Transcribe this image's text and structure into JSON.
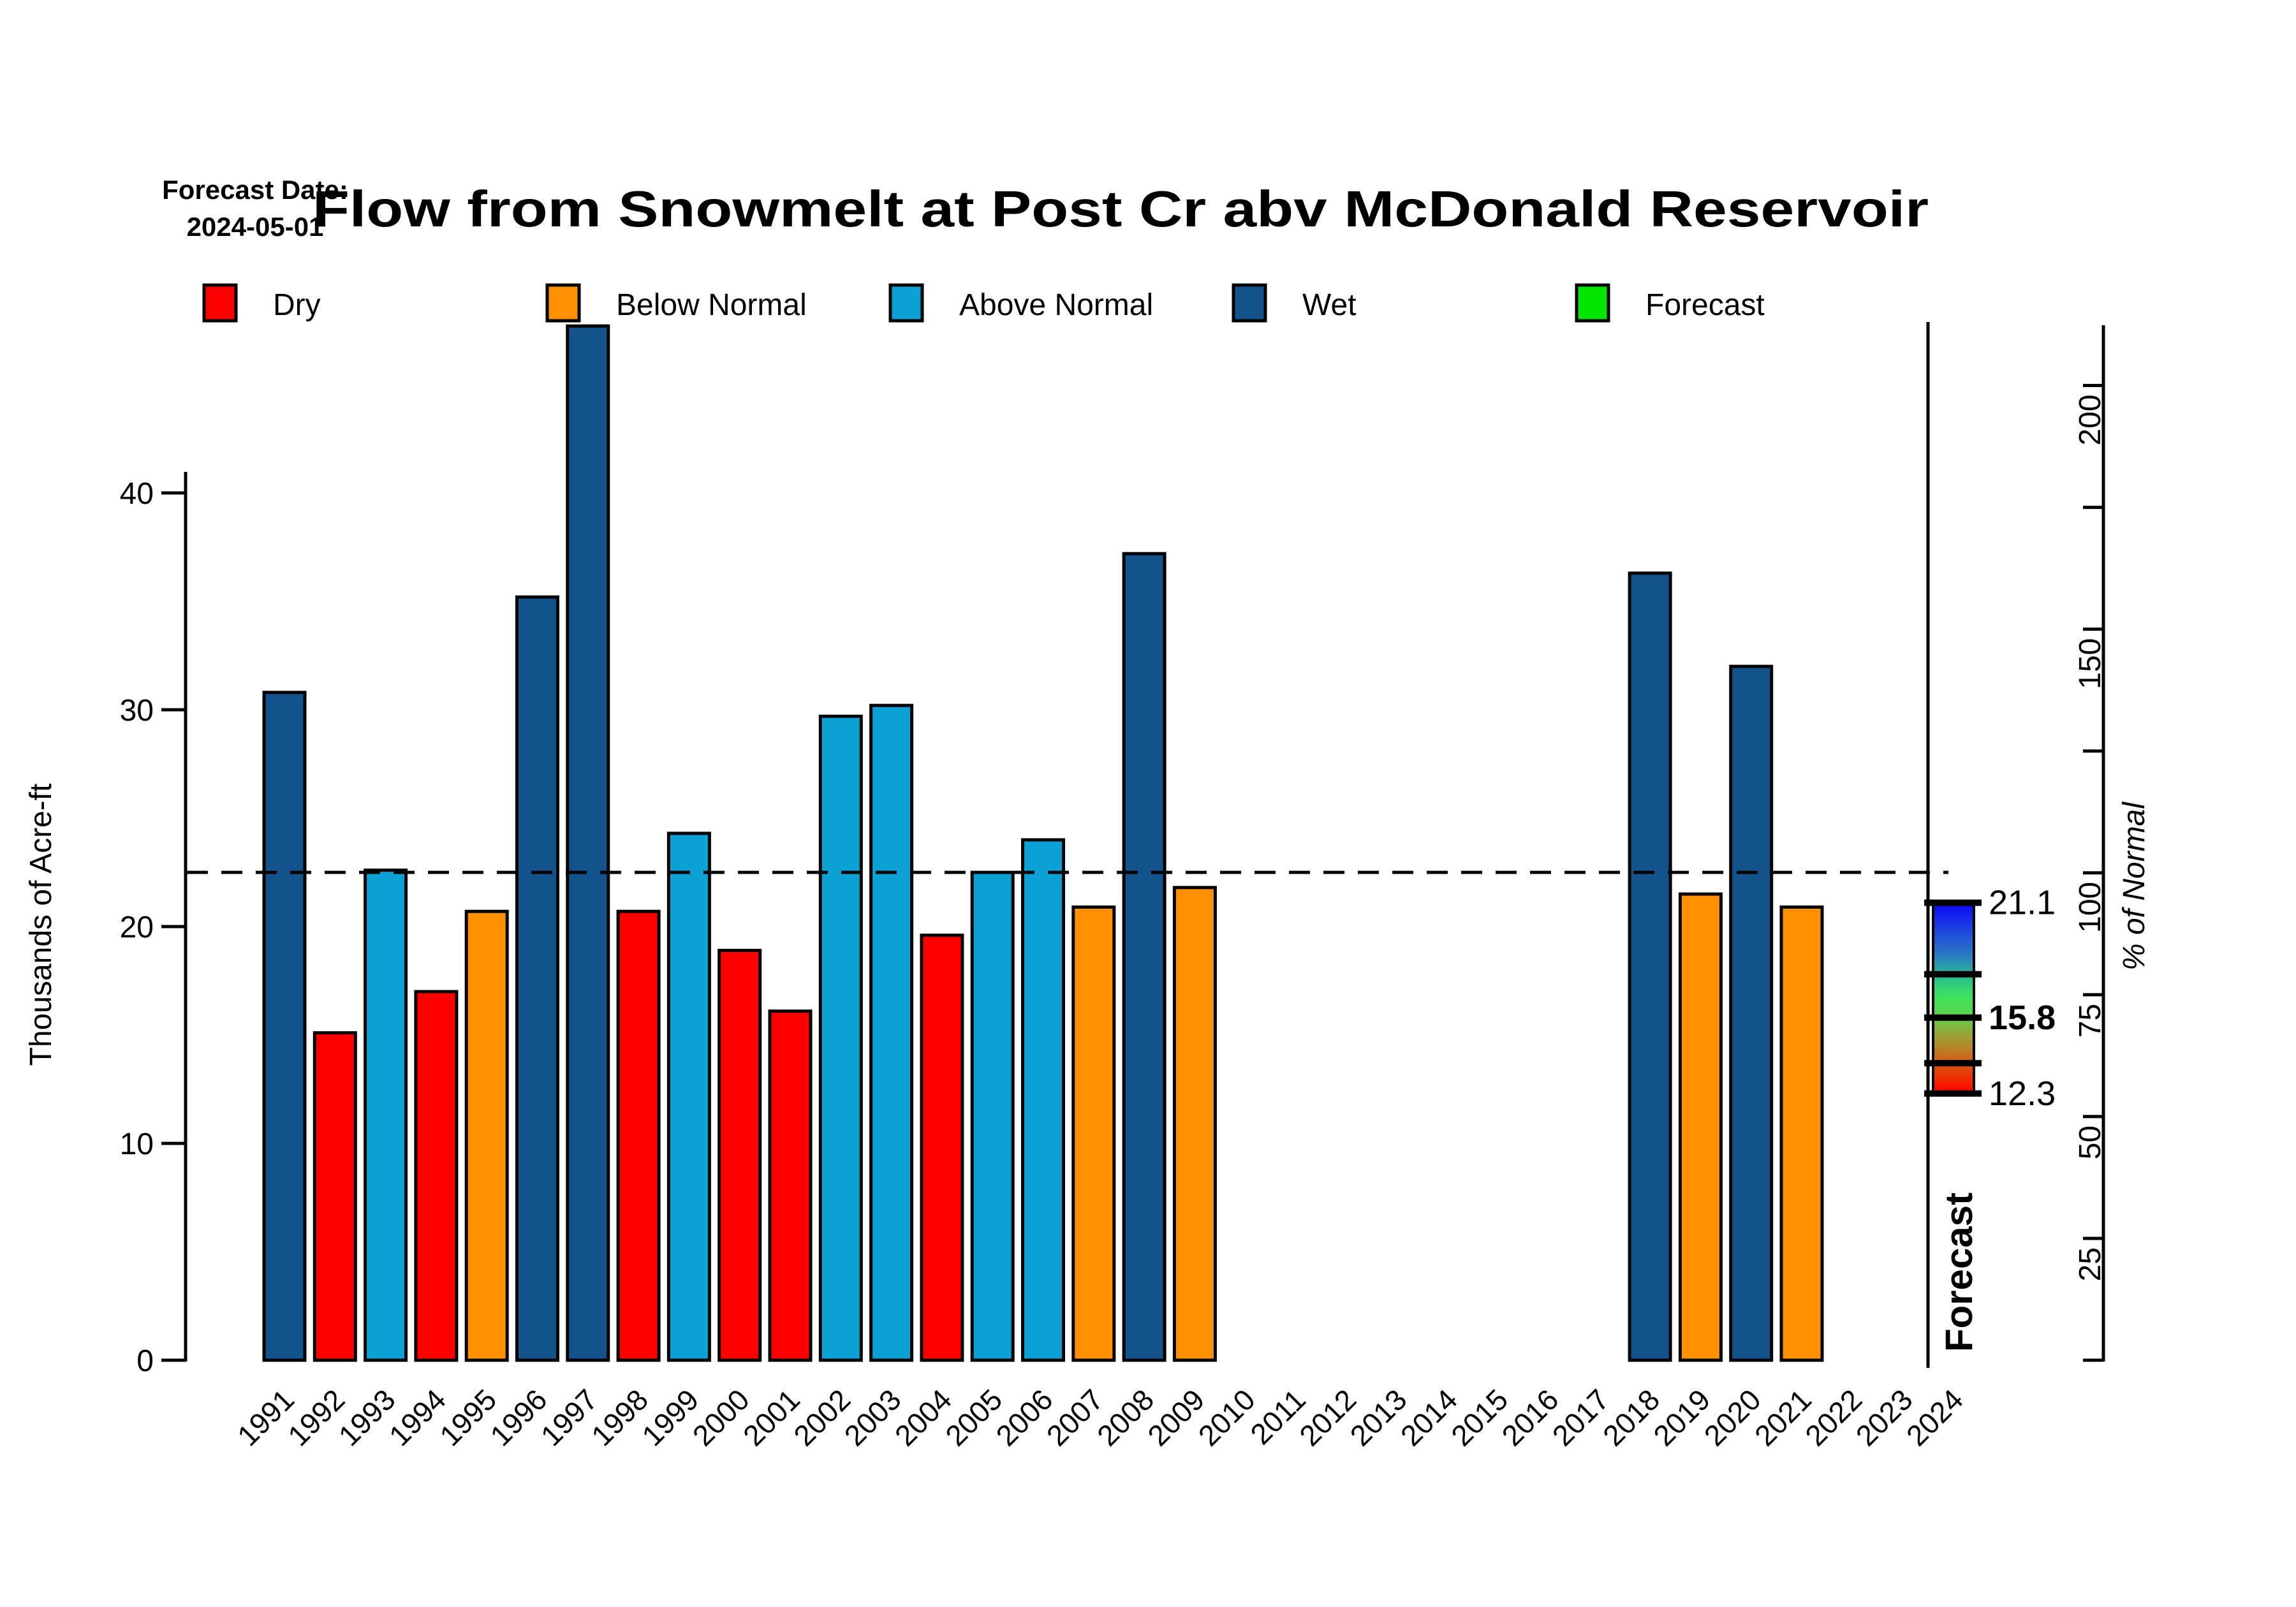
{
  "header": {
    "forecast_date_label": "Forecast Date:",
    "forecast_date_value": "2024-05-01",
    "title": "Flow from Snowmelt at Post Cr abv McDonald Reservoir"
  },
  "legend": {
    "items": [
      {
        "label": "Dry",
        "color": "#FF0000"
      },
      {
        "label": "Below Normal",
        "color": "#FF9100"
      },
      {
        "label": "Above Normal",
        "color": "#0DA0D2"
      },
      {
        "label": "Wet",
        "color": "#14528C"
      },
      {
        "label": "Forecast",
        "color": "#00E400"
      }
    ]
  },
  "axes": {
    "left": {
      "label": "Thousands of Acre-ft",
      "ticks": [
        0,
        10,
        20,
        30,
        40
      ]
    },
    "right": {
      "label": "% of Normal",
      "tick_percents": [
        0,
        25,
        50,
        75,
        100,
        125,
        150,
        175,
        200
      ],
      "labeled_percents": [
        25,
        50,
        75,
        100,
        150,
        200
      ]
    },
    "x": {
      "first_year": 1991,
      "last_year": 2024
    }
  },
  "normal_line": {
    "value_kaf": 22.5,
    "percent": 100,
    "style": "dashed"
  },
  "chart_data": {
    "type": "bar",
    "title": "Flow from Snowmelt at Post Cr abv McDonald Reservoir",
    "xlabel": "",
    "ylabel": "Thousands of Acre-ft",
    "y2label": "% of Normal",
    "ylim": [
      0,
      48
    ],
    "normal_kaf": 22.5,
    "grid": false,
    "legend_position": "top",
    "categories": [
      1991,
      1992,
      1993,
      1994,
      1995,
      1996,
      1997,
      1998,
      1999,
      2000,
      2001,
      2002,
      2003,
      2004,
      2005,
      2006,
      2007,
      2008,
      2009,
      2010,
      2011,
      2012,
      2013,
      2014,
      2015,
      2016,
      2017,
      2018,
      2019,
      2020,
      2021,
      2022,
      2023,
      2024
    ],
    "values": [
      30.8,
      15.1,
      22.6,
      17.0,
      20.7,
      35.2,
      47.7,
      20.7,
      24.3,
      18.9,
      16.1,
      29.7,
      30.2,
      19.6,
      22.5,
      24.0,
      20.9,
      37.2,
      21.8,
      null,
      null,
      null,
      null,
      null,
      null,
      null,
      null,
      36.3,
      21.5,
      32.0,
      20.9,
      null,
      null,
      null
    ],
    "flow_categories": [
      "Wet",
      "Dry",
      "Above Normal",
      "Dry",
      "Below Normal",
      "Wet",
      "Wet",
      "Dry",
      "Above Normal",
      "Dry",
      "Dry",
      "Above Normal",
      "Above Normal",
      "Dry",
      "Above Normal",
      "Above Normal",
      "Below Normal",
      "Wet",
      "Below Normal",
      null,
      null,
      null,
      null,
      null,
      null,
      null,
      null,
      "Wet",
      "Below Normal",
      "Wet",
      "Below Normal",
      null,
      null,
      null
    ]
  },
  "forecast_panel": {
    "label": "Forecast",
    "year": 2024,
    "exceedance_values": {
      "p10": 21.1,
      "p30": 17.8,
      "p50": 15.8,
      "p70": 13.7,
      "p90": 12.3
    },
    "tick_values": [
      21.1,
      17.8,
      15.8,
      13.7,
      12.3
    ],
    "labels": [
      {
        "text": "21.1",
        "value": 21.1,
        "bold": false
      },
      {
        "text": "15.8",
        "value": 15.8,
        "bold": true
      },
      {
        "text": "12.3",
        "value": 12.3,
        "bold": false
      }
    ],
    "gradient_stops": [
      [
        0.0,
        "#FF0000"
      ],
      [
        0.08,
        "#EE2B00"
      ],
      [
        0.16,
        "#D55A12"
      ],
      [
        0.24,
        "#B58428"
      ],
      [
        0.32,
        "#93A838"
      ],
      [
        0.4,
        "#62CE4E"
      ],
      [
        0.5,
        "#3EE45A"
      ],
      [
        0.58,
        "#2FC97F"
      ],
      [
        0.64,
        "#28AC9C"
      ],
      [
        0.72,
        "#2B7EC0"
      ],
      [
        0.82,
        "#2353D6"
      ],
      [
        0.92,
        "#1629EA"
      ],
      [
        1.0,
        "#0A06F2"
      ]
    ]
  }
}
